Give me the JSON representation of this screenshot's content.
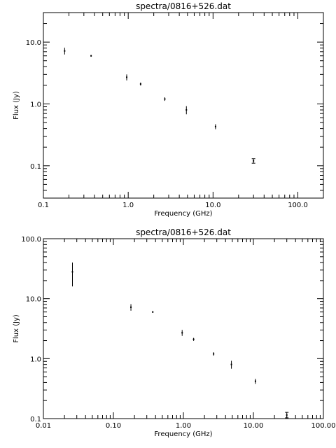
{
  "chart_data": [
    {
      "type": "scatter",
      "title": "spectra/0816+526.dat",
      "xlabel": "Frequency (GHz)",
      "ylabel": "Flux (Jy)",
      "xscale": "log",
      "yscale": "log",
      "xlim": [
        0.1,
        200
      ],
      "ylim": [
        0.03,
        30
      ],
      "xticks": [
        0.1,
        1,
        10,
        100
      ],
      "xticklabels": [
        "0.1",
        "1.0",
        "10.0",
        "100.0"
      ],
      "yticks": [
        0.1,
        1,
        10
      ],
      "yticklabels": [
        "0.1",
        "1.0",
        "10.0"
      ],
      "points": [
        {
          "x": 0.178,
          "y": 7.2,
          "yerr": 0.9
        },
        {
          "x": 0.365,
          "y": 6.0,
          "yerr": 0.2
        },
        {
          "x": 0.96,
          "y": 2.7,
          "yerr": 0.3
        },
        {
          "x": 1.4,
          "y": 2.1,
          "yerr": 0.12
        },
        {
          "x": 2.7,
          "y": 1.2,
          "yerr": 0.08
        },
        {
          "x": 4.85,
          "y": 0.8,
          "yerr": 0.12
        },
        {
          "x": 10.7,
          "y": 0.43,
          "yerr": 0.04
        },
        {
          "x": 30.0,
          "y": 0.12,
          "yerr": 0.01,
          "capped": true
        }
      ]
    },
    {
      "type": "scatter",
      "title": "spectra/0816+526.dat",
      "xlabel": "Frequency (GHz)",
      "ylabel": "Flux (Jy)",
      "xscale": "log",
      "yscale": "log",
      "xlim": [
        0.01,
        100
      ],
      "ylim": [
        0.1,
        100
      ],
      "xticks": [
        0.01,
        0.1,
        1,
        10,
        100
      ],
      "xticklabels": [
        "0.01",
        "0.10",
        "1.00",
        "10.00",
        "100.00"
      ],
      "yticks": [
        0.1,
        1,
        10,
        100
      ],
      "yticklabels": [
        "0.1",
        "1.0",
        "10.0",
        "100.0"
      ],
      "points": [
        {
          "x": 0.026,
          "y": 28.0,
          "yerr": 12.0
        },
        {
          "x": 0.178,
          "y": 7.2,
          "yerr": 0.9
        },
        {
          "x": 0.365,
          "y": 6.0,
          "yerr": 0.2
        },
        {
          "x": 0.96,
          "y": 2.7,
          "yerr": 0.3
        },
        {
          "x": 1.4,
          "y": 2.1,
          "yerr": 0.12
        },
        {
          "x": 2.7,
          "y": 1.2,
          "yerr": 0.08
        },
        {
          "x": 4.85,
          "y": 0.8,
          "yerr": 0.12
        },
        {
          "x": 10.7,
          "y": 0.42,
          "yerr": 0.04
        },
        {
          "x": 30.0,
          "y": 0.115,
          "yerr": 0.012,
          "capped": true
        }
      ]
    }
  ]
}
